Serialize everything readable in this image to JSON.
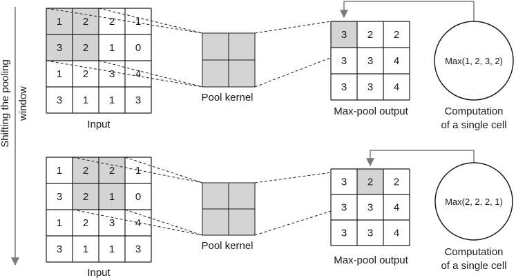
{
  "side_label": [
    "Shifting the pooling",
    "window"
  ],
  "colors": {
    "highlight": "#d4d4d4",
    "stroke": "#1a1a1a",
    "arrow": "#7a7a7a",
    "background": "#ffffff"
  },
  "panels": [
    {
      "input": {
        "values": [
          [
            "1",
            "2",
            "2",
            "1"
          ],
          [
            "3",
            "2",
            "1",
            "0"
          ],
          [
            "1",
            "2",
            "3",
            "4"
          ],
          [
            "3",
            "1",
            "1",
            "3"
          ]
        ],
        "highlight_cells": [
          [
            0,
            0
          ],
          [
            0,
            1
          ],
          [
            1,
            0
          ],
          [
            1,
            1
          ]
        ],
        "label": "Input"
      },
      "kernel": {
        "rows": 2,
        "cols": 2,
        "label": "Pool kernel"
      },
      "output": {
        "values": [
          [
            "3",
            "2",
            "2"
          ],
          [
            "3",
            "3",
            "4"
          ],
          [
            "3",
            "3",
            "4"
          ]
        ],
        "highlight_cell": [
          0,
          0
        ],
        "label": "Max-pool output"
      },
      "computation": {
        "text": "Max(1, 2, 3, 2)",
        "label": [
          "Computation",
          "of a single cell"
        ]
      }
    },
    {
      "input": {
        "values": [
          [
            "1",
            "2",
            "2",
            "1"
          ],
          [
            "3",
            "2",
            "1",
            "0"
          ],
          [
            "1",
            "2",
            "3",
            "4"
          ],
          [
            "3",
            "1",
            "1",
            "3"
          ]
        ],
        "highlight_cells": [
          [
            0,
            1
          ],
          [
            0,
            2
          ],
          [
            1,
            1
          ],
          [
            1,
            2
          ]
        ],
        "label": "Input"
      },
      "kernel": {
        "rows": 2,
        "cols": 2,
        "label": "Pool kernel"
      },
      "output": {
        "values": [
          [
            "3",
            "2",
            "2"
          ],
          [
            "3",
            "3",
            "4"
          ],
          [
            "3",
            "3",
            "4"
          ]
        ],
        "highlight_cell": [
          0,
          1
        ],
        "label": "Max-pool output"
      },
      "computation": {
        "text": "Max(2, 2, 2, 1)",
        "label": [
          "Computation",
          "of a single cell"
        ]
      }
    }
  ]
}
